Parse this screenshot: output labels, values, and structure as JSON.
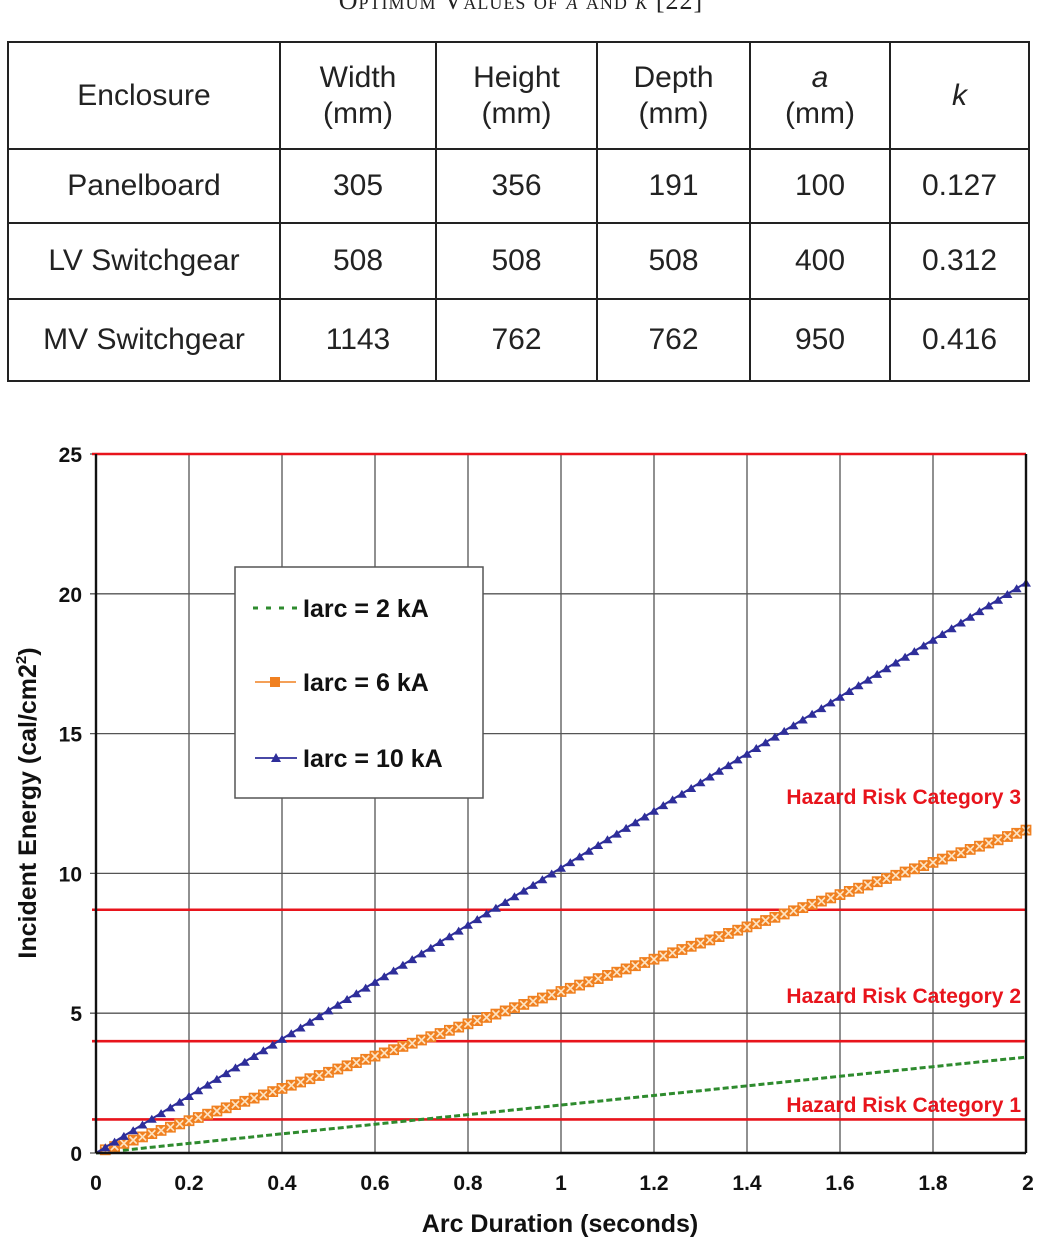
{
  "caption": {
    "prefix": "Optimum Values of ",
    "var_a": "a",
    "and": " and ",
    "var_k": "k",
    "ref": " [22]"
  },
  "table": {
    "headers": [
      {
        "line1": "Enclosure",
        "line2": ""
      },
      {
        "line1": "Width",
        "line2": "(mm)"
      },
      {
        "line1": "Height",
        "line2": "(mm)"
      },
      {
        "line1": "Depth",
        "line2": "(mm)"
      },
      {
        "line1": "a",
        "line2": "(mm)"
      },
      {
        "line1": "k",
        "line2": ""
      }
    ],
    "rows": [
      [
        "Panelboard",
        "305",
        "356",
        "191",
        "100",
        "0.127"
      ],
      [
        "LV Switchgear",
        "508",
        "508",
        "508",
        "400",
        "0.312"
      ],
      [
        "MV Switchgear",
        "1143",
        "762",
        "762",
        "950",
        "0.416"
      ]
    ]
  },
  "chart_data": {
    "type": "line",
    "title": "",
    "xlabel": "Arc Duration (seconds)",
    "ylabel": "Incident Energy (cal/cm2)",
    "xlim": [
      0,
      2
    ],
    "ylim": [
      0,
      25
    ],
    "x_ticks": [
      "0",
      "0.2",
      "0.4",
      "0.6",
      "0.8",
      "1",
      "1.2",
      "1.4",
      "1.6",
      "1.8",
      "2"
    ],
    "y_ticks": [
      "0",
      "5",
      "10",
      "15",
      "20",
      "25"
    ],
    "grid": true,
    "legend_position": "upper-left (inset box)",
    "x": [
      0,
      0.2,
      0.4,
      0.6,
      0.8,
      1.0,
      1.2,
      1.4,
      1.6,
      1.8,
      2.0
    ],
    "series": [
      {
        "name": "Iarc = 2 kA",
        "color": "#2e8b2e",
        "style": "dashed",
        "marker": "none",
        "values": [
          0,
          0.34,
          0.69,
          1.03,
          1.37,
          1.72,
          2.06,
          2.4,
          2.75,
          3.09,
          3.43
        ]
      },
      {
        "name": "Iarc = 6 kA",
        "color": "#f08020",
        "style": "solid",
        "marker": "square-x",
        "values": [
          0,
          1.16,
          2.31,
          3.47,
          4.62,
          5.78,
          6.93,
          8.09,
          9.24,
          10.4,
          11.55
        ]
      },
      {
        "name": "Iarc = 10 kA",
        "color": "#2e2e9a",
        "style": "solid",
        "marker": "triangle",
        "values": [
          0,
          2.04,
          4.08,
          6.12,
          8.16,
          10.2,
          12.24,
          14.28,
          16.32,
          18.36,
          20.4
        ]
      }
    ],
    "reference_lines": [
      {
        "y": 1.2,
        "color": "#e8141c",
        "label": "Hazard Risk Category 1"
      },
      {
        "y": 4.0,
        "color": "#e8141c",
        "label": "Hazard Risk Category 2"
      },
      {
        "y": 8.7,
        "color": "#e8141c",
        "label": "Hazard Risk Category 3"
      },
      {
        "y": 25.0,
        "color": "#e8141c",
        "label": ""
      }
    ]
  }
}
